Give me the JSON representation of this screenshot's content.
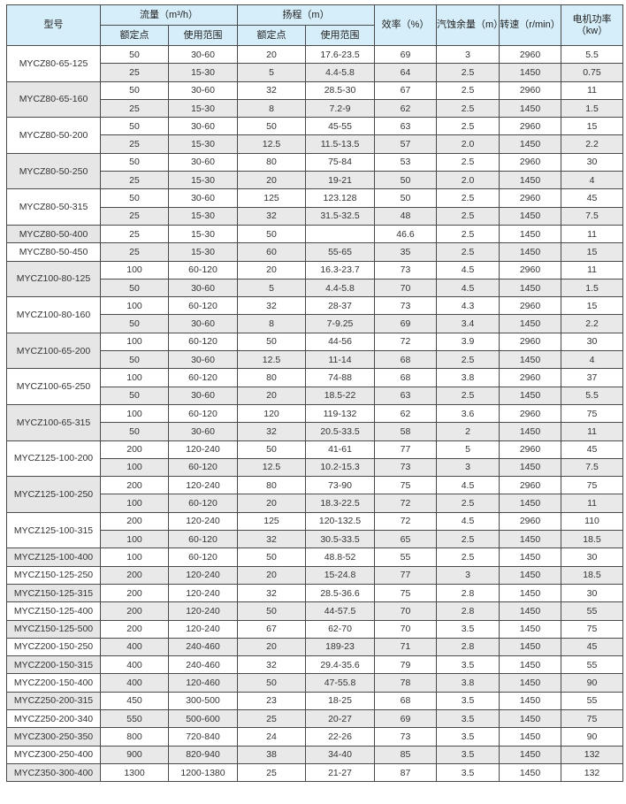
{
  "header": {
    "model": "型号",
    "flow": "流量（m³/h）",
    "head": "扬程（m）",
    "efficiency": "效率（%）",
    "npsh": "汽蚀余量（m）",
    "speed": "转速（r/min）",
    "power": "电机功率（kw）",
    "rated": "额定点",
    "range": "使用范围"
  },
  "groups": [
    {
      "model": "MYCZ80-65-125",
      "rows": [
        [
          "50",
          "30-60",
          "20",
          "17.6-23.5",
          "69",
          "3",
          "2960",
          "5.5"
        ],
        [
          "25",
          "15-30",
          "5",
          "4.4-5.8",
          "64",
          "2.5",
          "1450",
          "0.75"
        ]
      ]
    },
    {
      "model": "MYCZ80-65-160",
      "rows": [
        [
          "50",
          "30-60",
          "32",
          "28.5-30",
          "67",
          "2.5",
          "2960",
          "11"
        ],
        [
          "25",
          "15-30",
          "8",
          "7.2-9",
          "62",
          "2.5",
          "1450",
          "1.5"
        ]
      ]
    },
    {
      "model": "MYCZ80-50-200",
      "rows": [
        [
          "50",
          "30-60",
          "50",
          "45-55",
          "63",
          "2.5",
          "2960",
          "15"
        ],
        [
          "25",
          "15-30",
          "12.5",
          "11.5-13.5",
          "57",
          "2.0",
          "1450",
          "2.2"
        ]
      ]
    },
    {
      "model": "MYCZ80-50-250",
      "rows": [
        [
          "50",
          "30-60",
          "80",
          "75-84",
          "53",
          "2.5",
          "2960",
          "30"
        ],
        [
          "25",
          "15-30",
          "20",
          "19-21",
          "50",
          "2.0",
          "1450",
          "4"
        ]
      ]
    },
    {
      "model": "MYCZ80-50-315",
      "rows": [
        [
          "50",
          "30-60",
          "125",
          "123.128",
          "50",
          "2.5",
          "2960",
          "45"
        ],
        [
          "25",
          "15-30",
          "32",
          "31.5-32.5",
          "48",
          "2.5",
          "1450",
          "7.5"
        ]
      ]
    },
    {
      "model": "MYCZ80-50-400",
      "rows": [
        [
          "25",
          "15-30",
          "50",
          "",
          "46.6",
          "2.5",
          "1450",
          "11"
        ]
      ]
    },
    {
      "model": "MYCZ80-50-450",
      "rows": [
        [
          "25",
          "15-30",
          "60",
          "55-65",
          "35",
          "2.5",
          "1450",
          "15"
        ]
      ]
    },
    {
      "model": "MYCZ100-80-125",
      "rows": [
        [
          "100",
          "60-120",
          "20",
          "16.3-23.7",
          "73",
          "4.5",
          "2960",
          "11"
        ],
        [
          "50",
          "30-60",
          "5",
          "4.4-5.8",
          "70",
          "4.5",
          "1450",
          "1.5"
        ]
      ]
    },
    {
      "model": "MYCZ100-80-160",
      "rows": [
        [
          "100",
          "60-120",
          "32",
          "28-37",
          "73",
          "4.3",
          "2960",
          "15"
        ],
        [
          "50",
          "30-60",
          "8",
          "7-9.25",
          "69",
          "3.4",
          "1450",
          "2.2"
        ]
      ]
    },
    {
      "model": "MYCZ100-65-200",
      "rows": [
        [
          "100",
          "60-120",
          "50",
          "44-56",
          "72",
          "3.9",
          "2960",
          "30"
        ],
        [
          "50",
          "30-60",
          "12.5",
          "11-14",
          "68",
          "2.5",
          "1450",
          "4"
        ]
      ]
    },
    {
      "model": "MYCZ100-65-250",
      "rows": [
        [
          "100",
          "60-120",
          "80",
          "74-88",
          "68",
          "3.8",
          "2960",
          "37"
        ],
        [
          "50",
          "30-60",
          "20",
          "18.5-22",
          "63",
          "2.5",
          "1450",
          "5.5"
        ]
      ]
    },
    {
      "model": "MYCZ100-65-315",
      "rows": [
        [
          "100",
          "60-120",
          "120",
          "119-132",
          "62",
          "3.6",
          "2960",
          "75"
        ],
        [
          "50",
          "30-60",
          "32",
          "20.5-33.5",
          "58",
          "2",
          "1450",
          "11"
        ]
      ]
    },
    {
      "model": "MYCZ125-100-200",
      "rows": [
        [
          "200",
          "120-240",
          "50",
          "41-61",
          "77",
          "5",
          "2960",
          "45"
        ],
        [
          "100",
          "60-120",
          "12.5",
          "10.2-15.3",
          "73",
          "3",
          "1450",
          "7.5"
        ]
      ]
    },
    {
      "model": "MYCZ125-100-250",
      "rows": [
        [
          "200",
          "120-240",
          "80",
          "73-90",
          "75",
          "4.5",
          "2960",
          "75"
        ],
        [
          "100",
          "60-120",
          "20",
          "18.3-22.5",
          "72",
          "2.5",
          "1450",
          "11"
        ]
      ]
    },
    {
      "model": "MYCZ125-100-315",
      "rows": [
        [
          "200",
          "120-240",
          "125",
          "120-132.5",
          "72",
          "4.5",
          "2960",
          "110"
        ],
        [
          "100",
          "60-120",
          "32",
          "30.5-33.5",
          "65",
          "2.5",
          "1450",
          "18.5"
        ]
      ]
    },
    {
      "model": "MYCZ125-100-400",
      "rows": [
        [
          "100",
          "60-120",
          "50",
          "48.8-52",
          "55",
          "2.5",
          "1450",
          "30"
        ]
      ]
    },
    {
      "model": "MYCZ150-125-250",
      "rows": [
        [
          "200",
          "120-240",
          "20",
          "15-24.8",
          "77",
          "3",
          "1450",
          "18.5"
        ]
      ]
    },
    {
      "model": "MYCZ150-125-315",
      "rows": [
        [
          "200",
          "120-240",
          "32",
          "28.5-36.6",
          "75",
          "2.8",
          "1450",
          "30"
        ]
      ]
    },
    {
      "model": "MYCZ150-125-400",
      "rows": [
        [
          "200",
          "120-240",
          "50",
          "44-57.5",
          "70",
          "2.8",
          "1450",
          "55"
        ]
      ]
    },
    {
      "model": "MYCZ150-125-500",
      "rows": [
        [
          "200",
          "120-240",
          "67",
          "62-70",
          "70",
          "3.5",
          "1450",
          "75"
        ]
      ]
    },
    {
      "model": "MYCZ200-150-250",
      "rows": [
        [
          "400",
          "240-460",
          "20",
          "189-23",
          "71",
          "2.8",
          "1450",
          "45"
        ]
      ]
    },
    {
      "model": "MYCZ200-150-315",
      "rows": [
        [
          "400",
          "240-460",
          "32",
          "29.4-35.6",
          "79",
          "3.5",
          "1450",
          "55"
        ]
      ]
    },
    {
      "model": "MYCZ200-150-400",
      "rows": [
        [
          "400",
          "120-460",
          "50",
          "47-55.8",
          "78",
          "3.8",
          "1450",
          "90"
        ]
      ]
    },
    {
      "model": "MYCZ250-200-315",
      "rows": [
        [
          "450",
          "300-500",
          "23",
          "18-25",
          "68",
          "3.5",
          "1450",
          "55"
        ]
      ]
    },
    {
      "model": "MYCZ250-200-340",
      "rows": [
        [
          "550",
          "500-600",
          "25",
          "20-27",
          "69",
          "3.5",
          "1450",
          "75"
        ]
      ]
    },
    {
      "model": "MYCZ300-250-350",
      "rows": [
        [
          "800",
          "720-840",
          "24",
          "22-26",
          "73",
          "3.5",
          "1450",
          "90"
        ]
      ]
    },
    {
      "model": "MYCZ300-250-400",
      "rows": [
        [
          "900",
          "820-940",
          "38",
          "34-40",
          "85",
          "3.5",
          "1450",
          "132"
        ]
      ]
    },
    {
      "model": "MYCZ350-300-400",
      "rows": [
        [
          "1300",
          "1200-1380",
          "25",
          "21-27",
          "87",
          "3.5",
          "1450",
          "132"
        ]
      ]
    }
  ]
}
